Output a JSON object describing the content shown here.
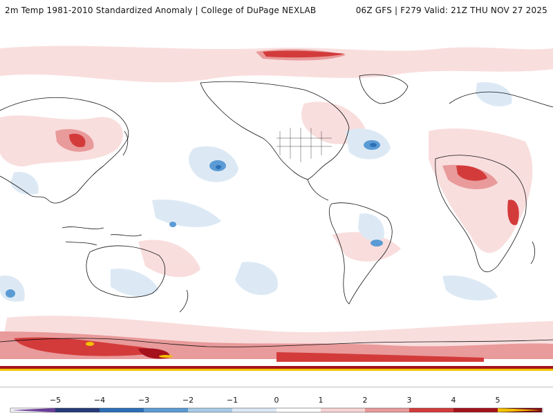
{
  "header": {
    "title": "2m Temp 1981-2010 Standardized Anomaly | College of DuPage NEXLAB",
    "run_info": "06Z GFS | F279 Valid: 21Z THU NOV 27 2025"
  },
  "map": {
    "projection": "equirectangular",
    "center_longitude": "180",
    "field": "2m temperature standardized anomaly"
  },
  "legend": {
    "ticks": [
      "−5",
      "−4",
      "−3",
      "−2",
      "−1",
      "0",
      "1",
      "2",
      "3",
      "4",
      "5"
    ],
    "colors": {
      "below_-5": "#6a3d9a",
      "-5_-4": "#253a7a",
      "-4_-3": "#2b6fb6",
      "-3_-2": "#5b9bd5",
      "-2_-1": "#a9cce8",
      "-1_0": "#dce9f5",
      "0_1": "#ffffff",
      "1_2": "#f7d4d4",
      "2_3": "#e99a9a",
      "3_4": "#d33b3b",
      "4_5": "#a5121b",
      "5_plus": "#7a0010",
      "above_max": "#f2c300"
    }
  }
}
